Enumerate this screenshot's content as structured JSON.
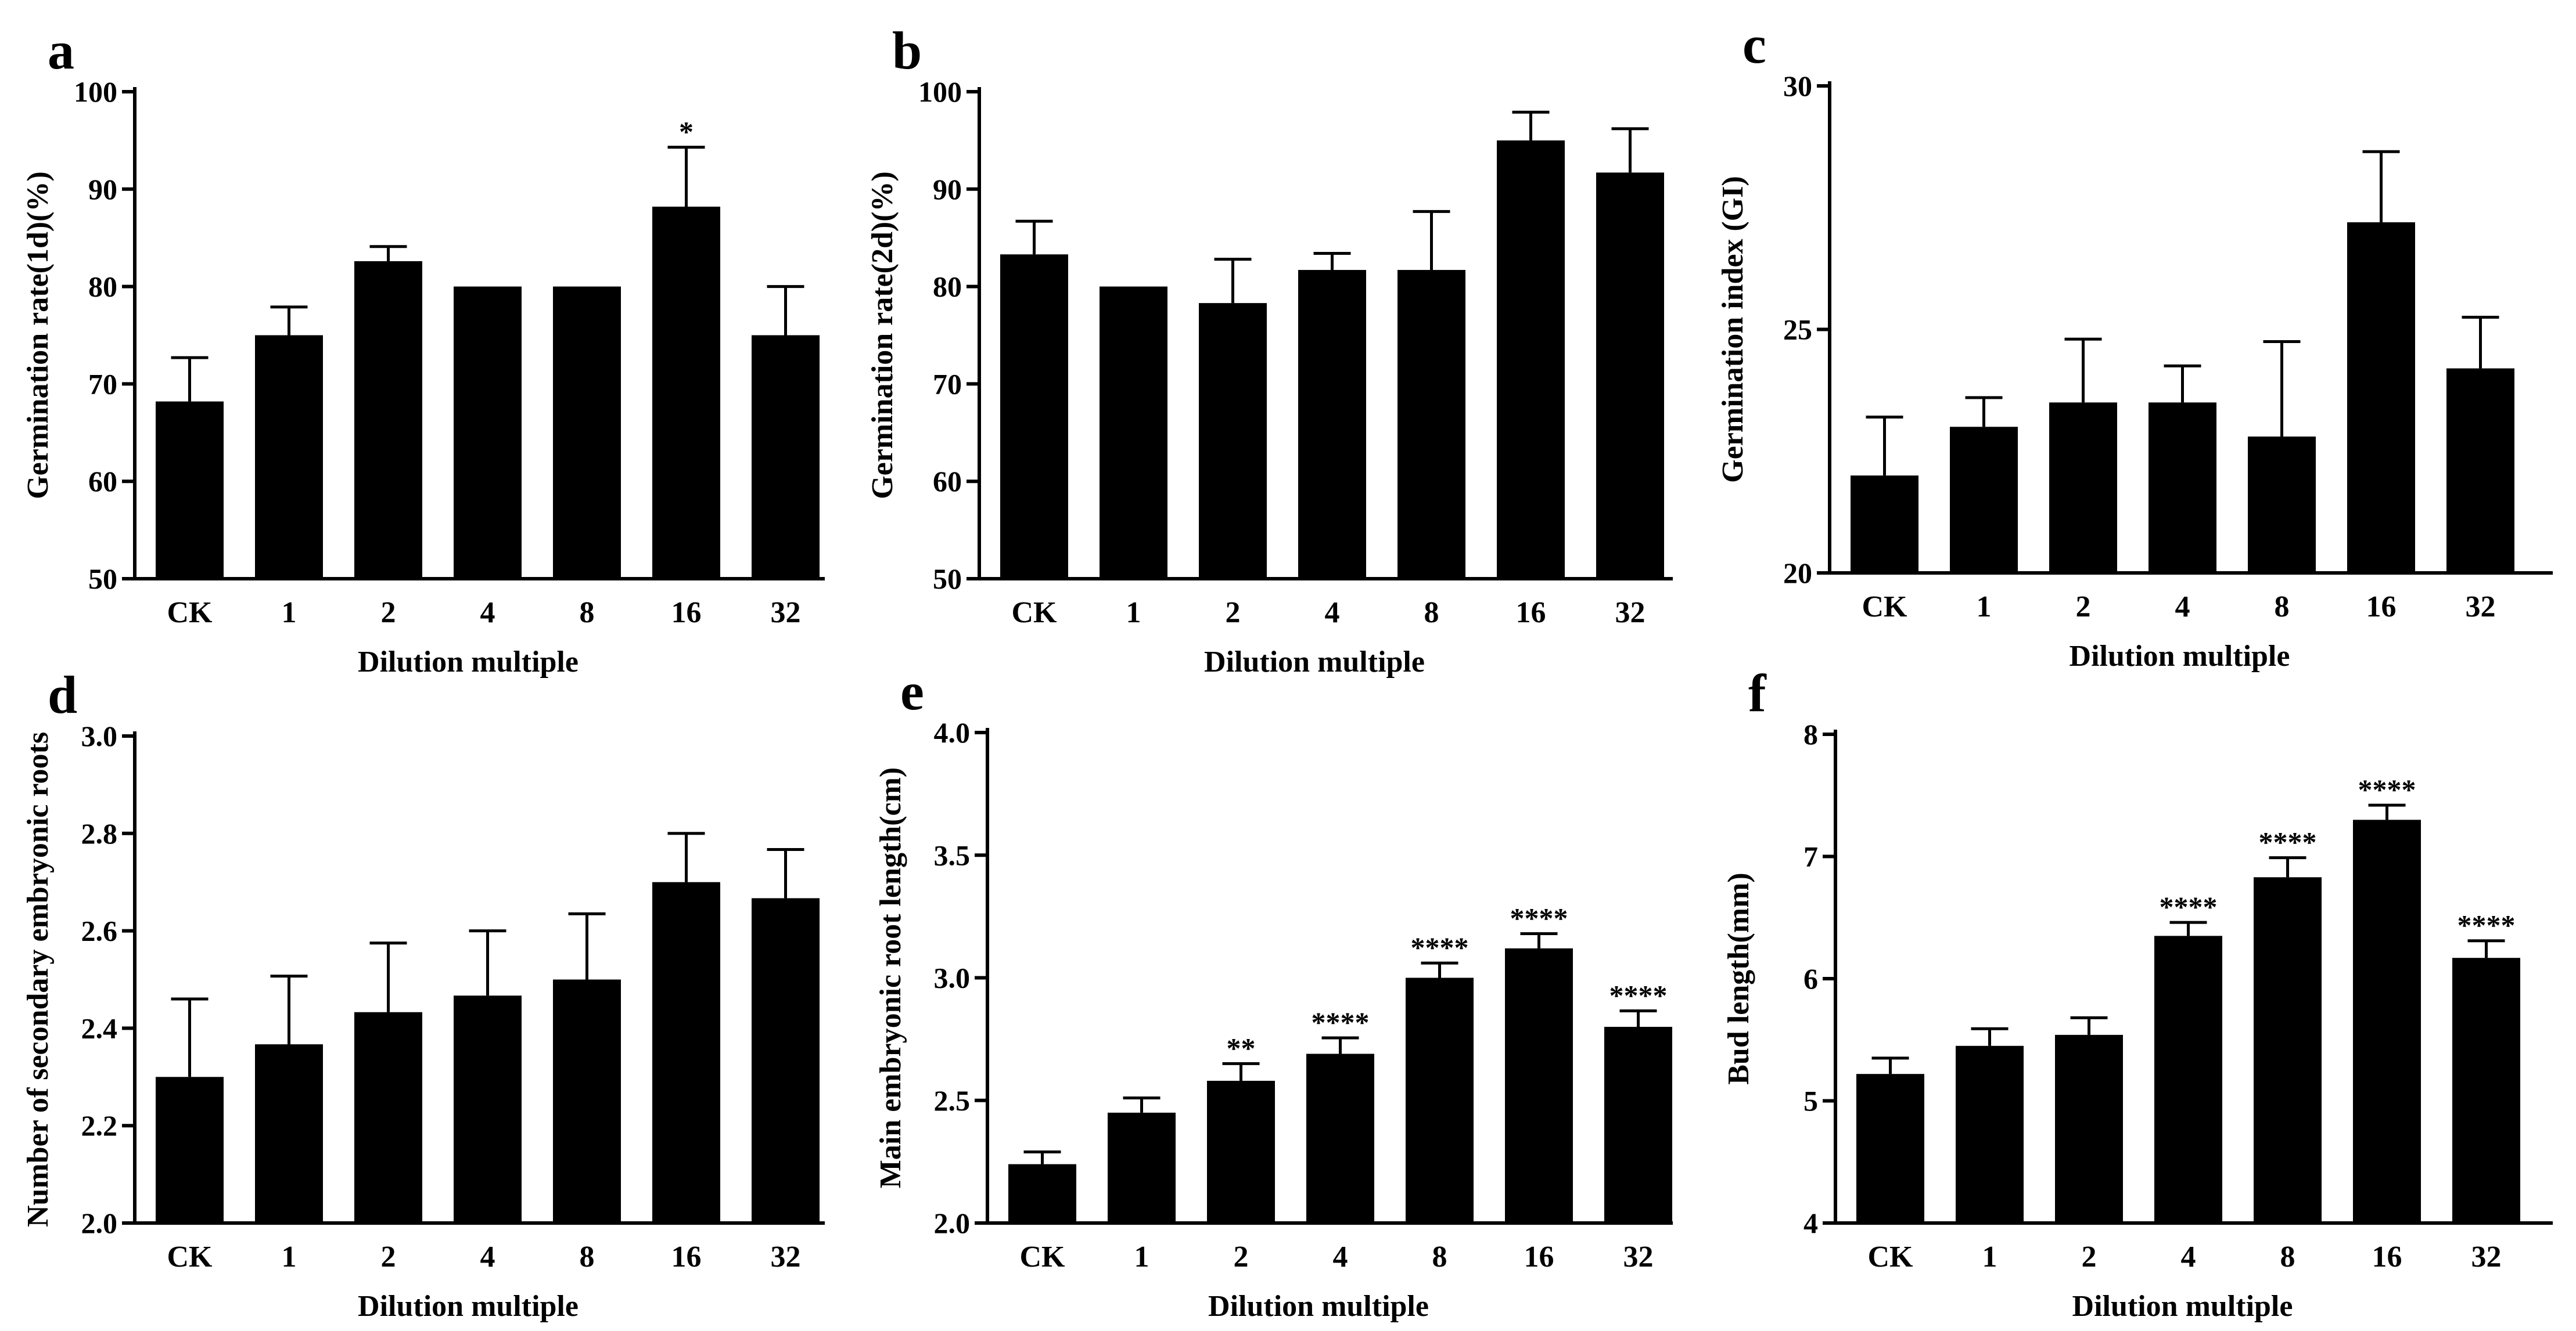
{
  "figure_id": "figure",
  "chart_data": [
    {
      "panel": "a",
      "type": "bar",
      "categories": [
        "CK",
        "1",
        "2",
        "4",
        "8",
        "16",
        "32"
      ],
      "values": [
        68.2,
        75.0,
        82.6,
        80.0,
        80.0,
        88.2,
        75.0
      ],
      "errors": [
        4.5,
        2.9,
        1.5,
        0,
        0,
        6.1,
        5.0
      ],
      "significance": [
        "",
        "",
        "",
        "",
        "",
        "*",
        ""
      ],
      "ylim": [
        50,
        100
      ],
      "yticks": [
        50,
        60,
        70,
        80,
        90,
        100
      ],
      "ytick_labels": [
        "50",
        "60",
        "70",
        "80",
        "90",
        "100"
      ],
      "ylabel": "Germination rate(1d)(%)",
      "xlabel": "Dilution multiple",
      "grid": false,
      "legend": "none"
    },
    {
      "panel": "b",
      "type": "bar",
      "categories": [
        "CK",
        "1",
        "2",
        "4",
        "8",
        "16",
        "32"
      ],
      "values": [
        83.3,
        80.0,
        78.3,
        81.7,
        81.7,
        95.0,
        91.7
      ],
      "errors": [
        3.4,
        0,
        4.5,
        1.7,
        6.0,
        2.9,
        4.5
      ],
      "significance": [
        "",
        "",
        "",
        "",
        "",
        "",
        ""
      ],
      "ylim": [
        50,
        100
      ],
      "yticks": [
        50,
        60,
        70,
        80,
        90,
        100
      ],
      "ytick_labels": [
        "50",
        "60",
        "70",
        "80",
        "90",
        "100"
      ],
      "ylabel": "Germination rate(2d)(%)",
      "xlabel": "Dilution multiple",
      "grid": false,
      "legend": "none"
    },
    {
      "panel": "c",
      "type": "bar",
      "categories": [
        "CK",
        "1",
        "2",
        "4",
        "8",
        "16",
        "32"
      ],
      "values": [
        22.0,
        23.0,
        23.5,
        23.5,
        22.8,
        27.2,
        24.2
      ],
      "errors": [
        1.2,
        0.6,
        1.3,
        0.75,
        1.95,
        1.45,
        1.05
      ],
      "significance": [
        "",
        "",
        "",
        "",
        "",
        "",
        ""
      ],
      "ylim": [
        20,
        30
      ],
      "yticks": [
        20,
        25,
        30
      ],
      "ytick_labels": [
        "20",
        "25",
        "30"
      ],
      "ylabel": "Germination index (GI)",
      "xlabel": "Dilution multiple",
      "grid": false,
      "legend": "none"
    },
    {
      "panel": "d",
      "type": "bar",
      "categories": [
        "CK",
        "1",
        "2",
        "4",
        "8",
        "16",
        "32"
      ],
      "values": [
        2.3,
        2.367,
        2.433,
        2.467,
        2.5,
        2.7,
        2.667
      ],
      "errors": [
        0.16,
        0.14,
        0.142,
        0.133,
        0.135,
        0.1,
        0.1
      ],
      "significance": [
        "",
        "",
        "",
        "",
        "",
        "",
        ""
      ],
      "ylim": [
        2.0,
        3.0
      ],
      "yticks": [
        2.0,
        2.2,
        2.4,
        2.6,
        2.8,
        3.0
      ],
      "ytick_labels": [
        "2.0",
        "2.2",
        "2.4",
        "2.6",
        "2.8",
        "3.0"
      ],
      "ylabel": "Number of secondary embryonic roots",
      "xlabel": "Dilution multiple",
      "grid": false,
      "legend": "none"
    },
    {
      "panel": "e",
      "type": "bar",
      "categories": [
        "CK",
        "1",
        "2",
        "4",
        "8",
        "16",
        "32"
      ],
      "values": [
        2.24,
        2.45,
        2.58,
        2.69,
        3.0,
        3.12,
        2.8
      ],
      "errors": [
        0.05,
        0.06,
        0.07,
        0.065,
        0.06,
        0.06,
        0.065
      ],
      "significance": [
        "",
        "",
        "**",
        "****",
        "****",
        "****",
        "****"
      ],
      "ylim": [
        2.0,
        4.0
      ],
      "yticks": [
        2.0,
        2.5,
        3.0,
        3.5,
        4.0
      ],
      "ytick_labels": [
        "2.0",
        "2.5",
        "3.0",
        "3.5",
        "4.0"
      ],
      "ylabel": "Main embryonic root length(cm)",
      "xlabel": "Dilution multiple",
      "grid": false,
      "legend": "none"
    },
    {
      "panel": "f",
      "type": "bar",
      "categories": [
        "CK",
        "1",
        "2",
        "4",
        "8",
        "16",
        "32"
      ],
      "values": [
        5.22,
        5.45,
        5.54,
        6.35,
        6.83,
        7.3,
        6.17
      ],
      "errors": [
        0.13,
        0.14,
        0.14,
        0.11,
        0.16,
        0.12,
        0.14
      ],
      "significance": [
        "",
        "",
        "",
        "****",
        "****",
        "****",
        "****"
      ],
      "ylim": [
        4,
        8
      ],
      "yticks": [
        4,
        5,
        6,
        7,
        8
      ],
      "ytick_labels": [
        "4",
        "5",
        "6",
        "7",
        "8"
      ],
      "ylabel": "Bud length(mm)",
      "xlabel": "Dilution multiple",
      "grid": false,
      "legend": "none"
    }
  ]
}
